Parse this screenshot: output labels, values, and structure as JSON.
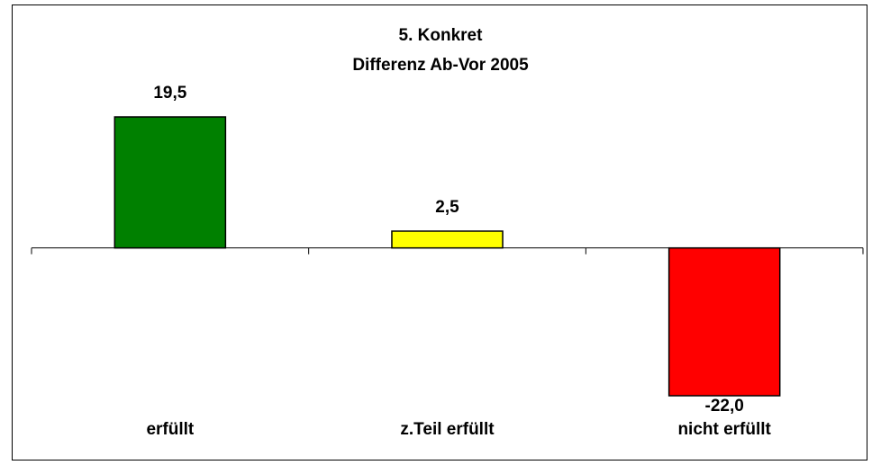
{
  "chart_data": {
    "type": "bar",
    "title": "5. Konkret",
    "subtitle": "Differenz Ab-Vor 2005",
    "categories": [
      "erfüllt",
      "z.Teil erfüllt",
      "nicht erfüllt"
    ],
    "values": [
      19.5,
      2.5,
      -22.0
    ],
    "value_labels": [
      "19,5",
      "2,5",
      "-22,0"
    ],
    "colors": [
      "#008000",
      "#ffff00",
      "#ff0000"
    ]
  }
}
